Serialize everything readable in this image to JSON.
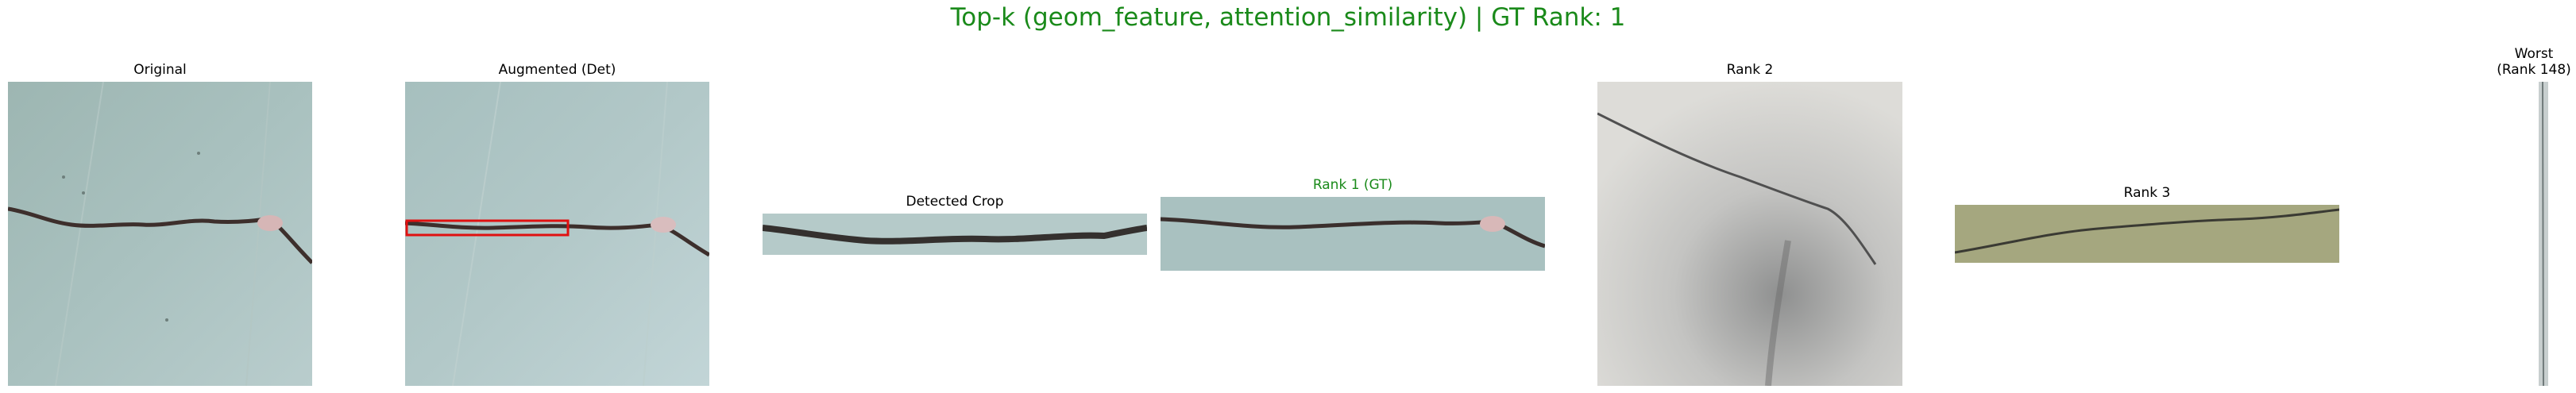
{
  "figure": {
    "title": "Top-k (geom_feature, attention_similarity) | GT Rank: 1",
    "title_color": "#1a8a1a",
    "gt_color": "#1a8a1a",
    "box_color": "#e01010"
  },
  "panels": {
    "original": {
      "title": "Original"
    },
    "augmented": {
      "title": "Augmented (Det)"
    },
    "detected": {
      "title": "Detected Crop"
    },
    "rank1": {
      "title": "Rank 1 (GT)"
    },
    "rank2": {
      "title": "Rank 2"
    },
    "rank3": {
      "title": "Rank 3"
    },
    "worst": {
      "title_line1": "Worst",
      "title_line2": "(Rank 148)"
    }
  }
}
